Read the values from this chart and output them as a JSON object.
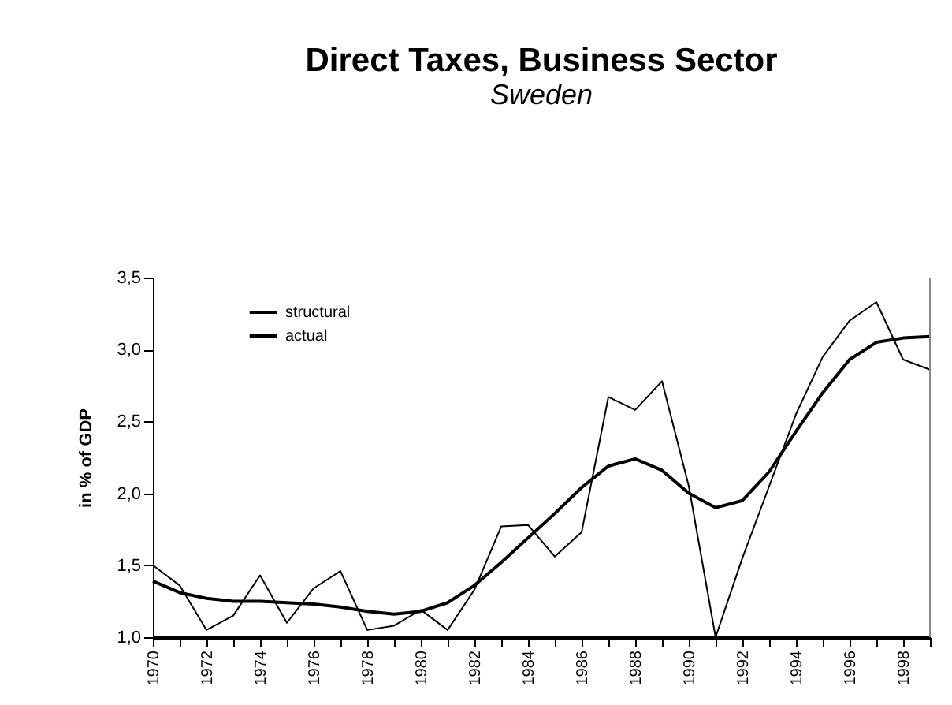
{
  "chart_data": {
    "type": "line",
    "title": "Direct Taxes, Business Sector",
    "subtitle": "Sweden",
    "ylabel": "in % of GDP",
    "x": [
      1970,
      1971,
      1972,
      1973,
      1974,
      1975,
      1976,
      1977,
      1978,
      1979,
      1980,
      1981,
      1982,
      1983,
      1984,
      1985,
      1986,
      1987,
      1988,
      1989,
      1990,
      1991,
      1992,
      1993,
      1994,
      1995,
      1996,
      1997,
      1998,
      1999
    ],
    "series": [
      {
        "name": "structural",
        "color": "#000000",
        "values": [
          1.39,
          1.31,
          1.27,
          1.25,
          1.25,
          1.24,
          1.23,
          1.21,
          1.18,
          1.16,
          1.18,
          1.24,
          1.36,
          1.52,
          1.69,
          1.86,
          2.04,
          2.19,
          2.24,
          2.16,
          2.0,
          1.9,
          1.95,
          2.15,
          2.43,
          2.7,
          2.93,
          3.05,
          3.08,
          3.09
        ]
      },
      {
        "name": "actual",
        "color": "#000000",
        "values": [
          1.5,
          1.36,
          1.05,
          1.15,
          1.43,
          1.1,
          1.34,
          1.46,
          1.05,
          1.08,
          1.19,
          1.05,
          1.33,
          1.77,
          1.78,
          1.56,
          1.73,
          2.67,
          2.58,
          2.78,
          2.05,
          1.0,
          1.55,
          2.05,
          2.55,
          2.95,
          3.2,
          3.33,
          2.93,
          2.86
        ]
      }
    ],
    "xlim": [
      1970,
      1999
    ],
    "xticks": [
      1970,
      {
        "value": 1971,
        "label": null
      },
      1972,
      {
        "value": 1973,
        "label": null
      },
      1974,
      {
        "value": 1975,
        "label": null
      },
      1976,
      {
        "value": 1977,
        "label": null
      },
      1978,
      {
        "value": 1979,
        "label": null
      },
      1980,
      {
        "value": 1981,
        "label": null
      },
      1982,
      {
        "value": 1983,
        "label": null
      },
      1984,
      {
        "value": 1985,
        "label": null
      },
      1986,
      {
        "value": 1987,
        "label": null
      },
      1988,
      {
        "value": 1989,
        "label": null
      },
      1990,
      {
        "value": 1991,
        "label": null
      },
      1992,
      {
        "value": 1993,
        "label": null
      },
      1994,
      {
        "value": 1995,
        "label": null
      },
      1996,
      {
        "value": 1997,
        "label": null
      },
      1998,
      {
        "value": 1999,
        "label": null
      }
    ],
    "ylim": [
      1.0,
      3.5
    ],
    "yticks": [
      {
        "value": 1.0,
        "label": "1,0"
      },
      {
        "value": 1.5,
        "label": "1,5"
      },
      {
        "value": 2.0,
        "label": "2,0"
      },
      {
        "value": 2.5,
        "label": "2,5"
      },
      {
        "value": 3.0,
        "label": "3,0"
      },
      {
        "value": 3.5,
        "label": "3,5"
      }
    ],
    "grid": false,
    "legend": "top left",
    "marker": "none",
    "line_style": "solid"
  }
}
